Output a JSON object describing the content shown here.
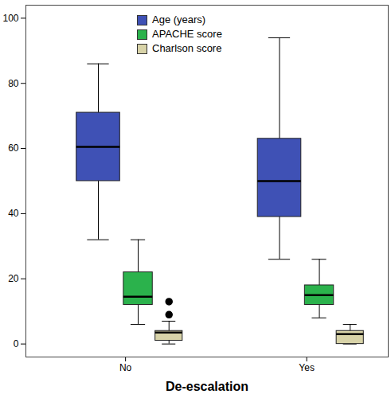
{
  "chart_data": {
    "type": "box",
    "categories": [
      "No",
      "Yes"
    ],
    "x_label": "De-escalation",
    "ylim": [
      -4,
      104
    ],
    "yticks": [
      0,
      20,
      40,
      60,
      80,
      100
    ],
    "legend": "top",
    "series": [
      {
        "name": "Age (years)",
        "color": "#3f51b5",
        "boxes": [
          {
            "min": 32,
            "q1": 50,
            "median": 60.5,
            "q3": 71,
            "max": 86,
            "outliers": []
          },
          {
            "min": 26,
            "q1": 39,
            "median": 50,
            "q3": 63,
            "max": 94,
            "outliers": []
          }
        ]
      },
      {
        "name": "APACHE score",
        "color": "#2bb24c",
        "boxes": [
          {
            "min": 6,
            "q1": 12,
            "median": 14.5,
            "q3": 22,
            "max": 32,
            "outliers": []
          },
          {
            "min": 8,
            "q1": 12,
            "median": 15,
            "q3": 18,
            "max": 26,
            "outliers": []
          }
        ]
      },
      {
        "name": "Charlson score",
        "color": "#d8d3a8",
        "boxes": [
          {
            "min": 0,
            "q1": 1,
            "median": 3.5,
            "q3": 4,
            "max": 7,
            "outliers": [
              9,
              13
            ]
          },
          {
            "min": 0,
            "q1": 0,
            "median": 3,
            "q3": 4,
            "max": 6,
            "outliers": []
          }
        ]
      }
    ]
  }
}
